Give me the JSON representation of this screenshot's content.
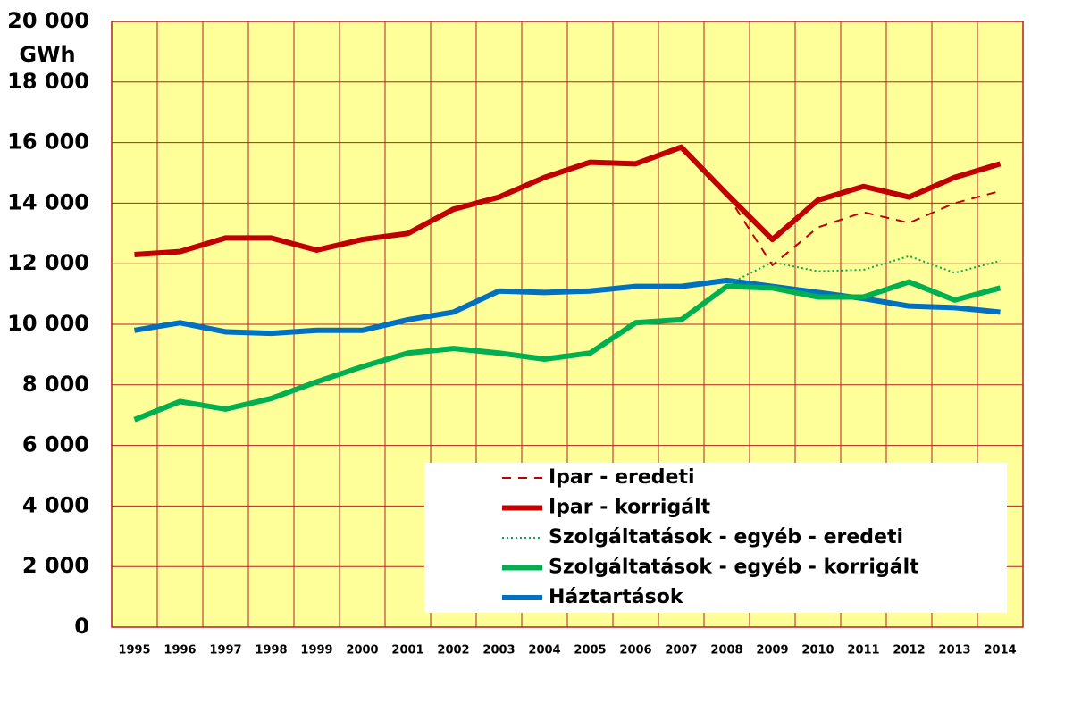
{
  "chart_data": {
    "type": "line",
    "y_unit": "GWh",
    "categories": [
      "1995",
      "1996",
      "1997",
      "1998",
      "1999",
      "2000",
      "2001",
      "2002",
      "2003",
      "2004",
      "2005",
      "2006",
      "2007",
      "2008",
      "2009",
      "2010",
      "2011",
      "2012",
      "2013",
      "2014"
    ],
    "ylim": [
      0,
      20000
    ],
    "yticks": [
      0,
      {
        "value": 2000,
        "label": "2 000"
      },
      {
        "value": 4000,
        "label": "4 000"
      },
      {
        "value": 6000,
        "label": "6 000"
      },
      {
        "value": 8000,
        "label": "8 000"
      },
      {
        "value": 10000,
        "label": "10 000"
      },
      {
        "value": 12000,
        "label": "12 000"
      },
      {
        "value": 14000,
        "label": "14 000"
      },
      {
        "value": 16000,
        "label": "16 000"
      },
      {
        "value": 18000,
        "label": "18 000"
      },
      {
        "value": 20000,
        "label": "20 000"
      }
    ],
    "grid": true,
    "legend": "lower right",
    "series": [
      {
        "name": "Ipar - eredeti",
        "color": "#c00000",
        "style": "dashed",
        "values": [
          null,
          null,
          null,
          null,
          null,
          null,
          null,
          null,
          null,
          null,
          null,
          null,
          null,
          14300,
          11950,
          13200,
          13700,
          13350,
          14000,
          14400
        ]
      },
      {
        "name": "Ipar - korrigált",
        "color": "#c00000",
        "style": "solid",
        "values": [
          12300,
          12400,
          12850,
          12850,
          12450,
          12800,
          13000,
          13800,
          14200,
          14850,
          15350,
          15300,
          15850,
          14300,
          12800,
          14100,
          14550,
          14200,
          14850,
          15300
        ]
      },
      {
        "name": "Szolgáltatások - egyéb - eredeti",
        "color": "#00b050",
        "style": "dotted",
        "values": [
          null,
          null,
          null,
          null,
          null,
          null,
          null,
          null,
          null,
          null,
          null,
          null,
          null,
          11300,
          12050,
          11750,
          11800,
          12250,
          11700,
          12100
        ]
      },
      {
        "name": "Szolgáltatások - egyéb - korrigált",
        "color": "#00b050",
        "style": "solid",
        "values": [
          6850,
          7450,
          7200,
          7550,
          8100,
          8600,
          9050,
          9200,
          9050,
          8850,
          9050,
          10050,
          10150,
          11250,
          11200,
          10900,
          10900,
          11400,
          10800,
          11200
        ]
      },
      {
        "name": "Háztartások",
        "color": "#0070c0",
        "style": "solid",
        "values": [
          9800,
          10050,
          9750,
          9700,
          9800,
          9800,
          10150,
          10400,
          11100,
          11050,
          11100,
          11250,
          11250,
          11450,
          11250,
          11050,
          10850,
          10600,
          10550,
          10400
        ]
      }
    ]
  }
}
